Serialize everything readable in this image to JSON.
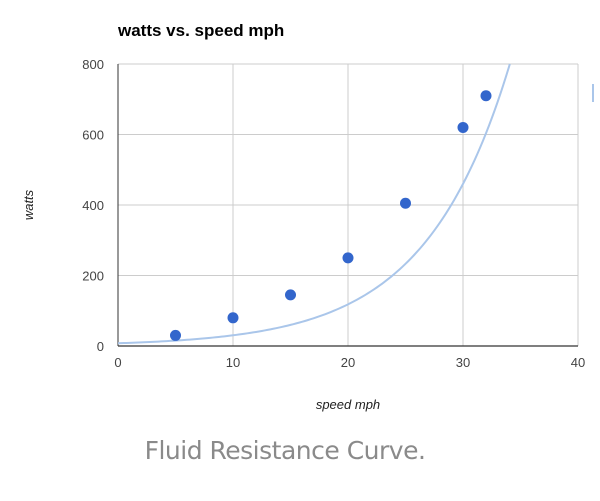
{
  "chart_data": {
    "type": "scatter",
    "title": "watts vs. speed mph",
    "xlabel": "speed mph",
    "ylabel": "watts",
    "xlim": [
      0,
      40
    ],
    "ylim": [
      0,
      800
    ],
    "x_ticks": [
      0,
      10,
      20,
      30,
      40
    ],
    "y_ticks": [
      0,
      200,
      400,
      600,
      800
    ],
    "grid": true,
    "series": [
      {
        "name": "watts",
        "x": [
          5,
          10,
          15,
          20,
          25,
          30,
          32
        ],
        "y": [
          30,
          80,
          145,
          250,
          405,
          620,
          710
        ]
      }
    ],
    "trendline": {
      "type": "exponential",
      "coefficient": 7.8,
      "rate": 0.1359
    },
    "colors": {
      "point": "#3366cc",
      "trendline": "#aac6ea",
      "grid": "#cccccc",
      "axis": "#333333"
    }
  },
  "caption": "Fluid Resistance Curve."
}
